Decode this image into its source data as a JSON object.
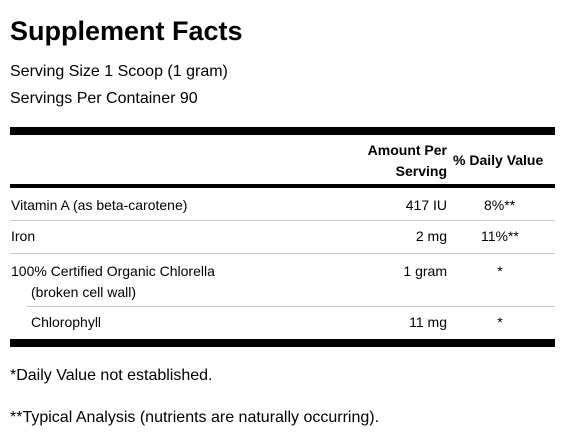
{
  "panel": {
    "title": "Supplement Facts",
    "serving_size": "Serving Size 1 Scoop (1 gram)",
    "servings_per_container": "Servings Per Container 90"
  },
  "table": {
    "headers": {
      "amount_line1": "Amount Per",
      "amount_line2": "Serving",
      "daily_value": "% Daily Value"
    },
    "rows": [
      {
        "name": "Vitamin A (as beta-carotene)",
        "amount": "417 IU",
        "dv": "8%**"
      },
      {
        "name": "Iron",
        "amount": "2 mg",
        "dv": "11%**"
      },
      {
        "name": "100% Certified Organic Chlorella",
        "name_line2": "(broken cell wall)",
        "amount": "1 gram",
        "dv": "*"
      },
      {
        "name": "Chlorophyll",
        "amount": "11 mg",
        "dv": "*"
      }
    ]
  },
  "footnotes": [
    "*Daily Value not established.",
    "**Typical Analysis (nutrients are naturally occurring)."
  ]
}
